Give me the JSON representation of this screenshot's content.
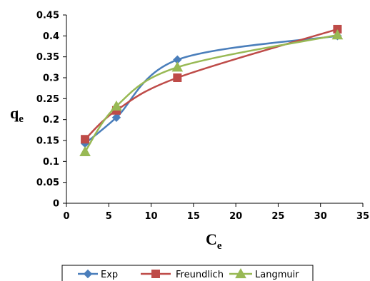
{
  "chart_data": {
    "type": "scatter",
    "title": "",
    "xlabel": "C",
    "xlabel_sub": "e",
    "ylabel": "q",
    "ylabel_sub": "e",
    "xlim": [
      0,
      35
    ],
    "ylim": [
      0,
      0.45
    ],
    "x_ticks": [
      0,
      5,
      10,
      15,
      20,
      25,
      30,
      35
    ],
    "y_ticks": [
      0,
      0.05,
      0.1,
      0.15,
      0.2,
      0.25,
      0.3,
      0.35,
      0.4,
      0.45
    ],
    "x_tick_labels": [
      "0",
      "5",
      "10",
      "15",
      "20",
      "25",
      "30",
      "35"
    ],
    "y_tick_labels": [
      "0",
      "0.05",
      "0.1",
      "0.15",
      "0.2",
      "0.25",
      "0.3",
      "0.35",
      "0.4",
      "0.45"
    ],
    "grid": false,
    "legend_position": "bottom",
    "line_style": "smoothed lines with markers",
    "series": [
      {
        "name": "Exp",
        "color": "#4a7ebb",
        "marker": "diamond",
        "x": [
          2.2,
          5.9,
          13.1,
          32.0
        ],
        "y": [
          0.143,
          0.205,
          0.343,
          0.4
        ]
      },
      {
        "name": "Freundlich",
        "color": "#be4b48",
        "marker": "square",
        "x": [
          2.2,
          5.9,
          13.1,
          32.0
        ],
        "y": [
          0.153,
          0.222,
          0.3,
          0.416
        ]
      },
      {
        "name": "Langmuir",
        "color": "#98b954",
        "marker": "triangle",
        "x": [
          2.2,
          5.9,
          13.1,
          32.0
        ],
        "y": [
          0.123,
          0.232,
          0.325,
          0.402
        ]
      }
    ]
  }
}
